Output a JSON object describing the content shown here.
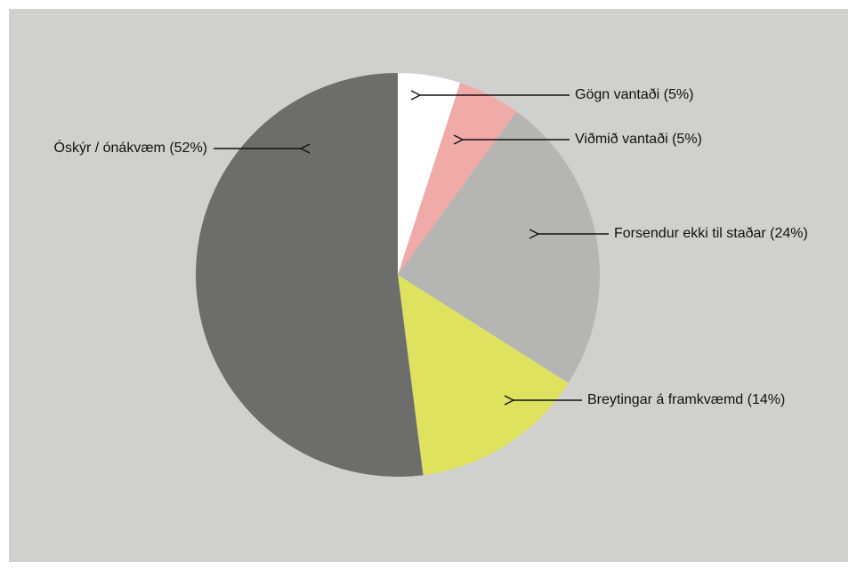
{
  "chart_data": {
    "type": "pie",
    "categories": [
      "Gögn vantaði (5%)",
      "Viðmið vantaði (5%)",
      "Forsendur ekki til staðar (24%)",
      "Breytingar á framkvæmd (14%)",
      "Óskýr / ónákvæm (52%)"
    ],
    "values": [
      5,
      5,
      24,
      14,
      52
    ],
    "colors": [
      "#ffffff",
      "#f0aba9",
      "#b5b6b3",
      "#dfe25f",
      "#6d6d6b"
    ]
  }
}
